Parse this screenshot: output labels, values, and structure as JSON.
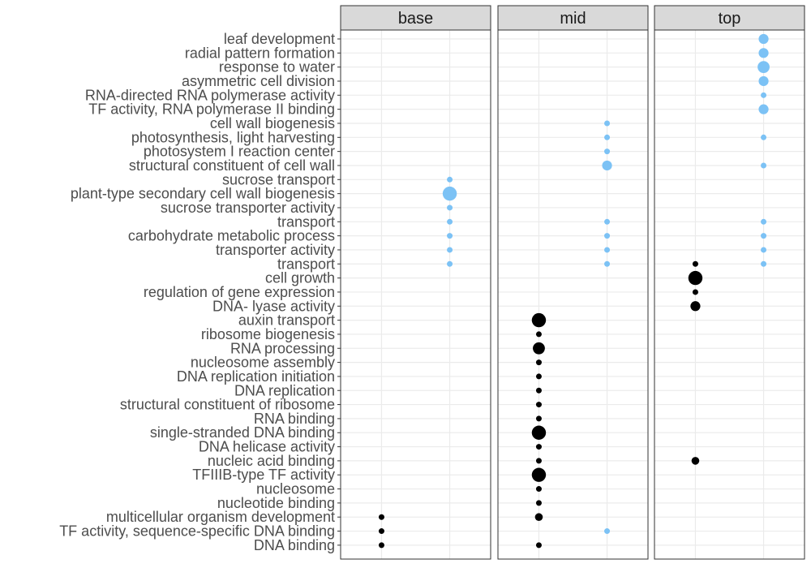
{
  "chart_data": {
    "type": "scatter",
    "facets": [
      "base",
      "mid",
      "top"
    ],
    "x_positions": [
      1,
      2
    ],
    "xlim": [
      0.4,
      2.6
    ],
    "x_tick_labels": [],
    "categories": [
      "leaf development",
      "radial pattern formation",
      "response to water",
      "asymmetric cell division",
      "RNA-directed RNA polymerase activity",
      "TF activity, RNA polymerase II  binding",
      "cell wall biogenesis",
      "photosynthesis, light harvesting",
      "photosystem I reaction center",
      "structural constituent of cell wall",
      "sucrose transport",
      "plant-type secondary cell wall biogenesis",
      "sucrose  transporter activity",
      "transport",
      "carbohydrate metabolic process",
      "transporter activity",
      "transport",
      "cell growth",
      "regulation of gene expression",
      "DNA- lyase activity",
      "auxin transport",
      "ribosome biogenesis",
      "RNA processing",
      "nucleosome assembly",
      "DNA replication initiation",
      "DNA replication",
      "structural constituent of ribosome",
      "RNA binding",
      "single-stranded DNA binding",
      "DNA helicase activity",
      "nucleic acid binding",
      "TFIIIB-type TF activity",
      "nucleosome",
      "nucleotide binding",
      "multicellular organism development",
      "TF activity, sequence-specific DNA binding",
      "DNA binding"
    ],
    "colors": {
      "black": "#000000",
      "blue": "#7cc2f5",
      "strip": "#d9d9d9",
      "grid": "#ebebeb",
      "border": "#333333"
    },
    "points": [
      {
        "facet": "base",
        "x": 2,
        "cat": 10,
        "size": 1,
        "color": "blue"
      },
      {
        "facet": "base",
        "x": 2,
        "cat": 11,
        "size": 3,
        "color": "blue"
      },
      {
        "facet": "base",
        "x": 2,
        "cat": 12,
        "size": 1,
        "color": "blue"
      },
      {
        "facet": "base",
        "x": 2,
        "cat": 13,
        "size": 1,
        "color": "blue"
      },
      {
        "facet": "base",
        "x": 2,
        "cat": 14,
        "size": 1,
        "color": "blue"
      },
      {
        "facet": "base",
        "x": 2,
        "cat": 15,
        "size": 1,
        "color": "blue"
      },
      {
        "facet": "base",
        "x": 2,
        "cat": 16,
        "size": 1,
        "color": "blue"
      },
      {
        "facet": "base",
        "x": 1,
        "cat": 34,
        "size": 1,
        "color": "black"
      },
      {
        "facet": "base",
        "x": 1,
        "cat": 35,
        "size": 1,
        "color": "black"
      },
      {
        "facet": "base",
        "x": 1,
        "cat": 36,
        "size": 1,
        "color": "black"
      },
      {
        "facet": "mid",
        "x": 2,
        "cat": 6,
        "size": 1,
        "color": "blue"
      },
      {
        "facet": "mid",
        "x": 2,
        "cat": 7,
        "size": 1,
        "color": "blue"
      },
      {
        "facet": "mid",
        "x": 2,
        "cat": 8,
        "size": 1,
        "color": "blue"
      },
      {
        "facet": "mid",
        "x": 2,
        "cat": 9,
        "size": 2,
        "color": "blue"
      },
      {
        "facet": "mid",
        "x": 2,
        "cat": 13,
        "size": 1,
        "color": "blue"
      },
      {
        "facet": "mid",
        "x": 2,
        "cat": 14,
        "size": 1,
        "color": "blue"
      },
      {
        "facet": "mid",
        "x": 2,
        "cat": 15,
        "size": 1,
        "color": "blue"
      },
      {
        "facet": "mid",
        "x": 2,
        "cat": 16,
        "size": 1,
        "color": "blue"
      },
      {
        "facet": "mid",
        "x": 2,
        "cat": 35,
        "size": 1,
        "color": "blue"
      },
      {
        "facet": "mid",
        "x": 1,
        "cat": 20,
        "size": 3,
        "color": "black"
      },
      {
        "facet": "mid",
        "x": 1,
        "cat": 21,
        "size": 1,
        "color": "black"
      },
      {
        "facet": "mid",
        "x": 1,
        "cat": 22,
        "size": 2.5,
        "color": "black"
      },
      {
        "facet": "mid",
        "x": 1,
        "cat": 23,
        "size": 1,
        "color": "black"
      },
      {
        "facet": "mid",
        "x": 1,
        "cat": 24,
        "size": 1,
        "color": "black"
      },
      {
        "facet": "mid",
        "x": 1,
        "cat": 25,
        "size": 1,
        "color": "black"
      },
      {
        "facet": "mid",
        "x": 1,
        "cat": 26,
        "size": 1,
        "color": "black"
      },
      {
        "facet": "mid",
        "x": 1,
        "cat": 27,
        "size": 1,
        "color": "black"
      },
      {
        "facet": "mid",
        "x": 1,
        "cat": 28,
        "size": 3,
        "color": "black"
      },
      {
        "facet": "mid",
        "x": 1,
        "cat": 29,
        "size": 1,
        "color": "black"
      },
      {
        "facet": "mid",
        "x": 1,
        "cat": 30,
        "size": 1,
        "color": "black"
      },
      {
        "facet": "mid",
        "x": 1,
        "cat": 31,
        "size": 3,
        "color": "black"
      },
      {
        "facet": "mid",
        "x": 1,
        "cat": 32,
        "size": 1,
        "color": "black"
      },
      {
        "facet": "mid",
        "x": 1,
        "cat": 33,
        "size": 1,
        "color": "black"
      },
      {
        "facet": "mid",
        "x": 1,
        "cat": 34,
        "size": 1.5,
        "color": "black"
      },
      {
        "facet": "mid",
        "x": 1,
        "cat": 36,
        "size": 1,
        "color": "black"
      },
      {
        "facet": "top",
        "x": 2,
        "cat": 0,
        "size": 2,
        "color": "blue"
      },
      {
        "facet": "top",
        "x": 2,
        "cat": 1,
        "size": 2,
        "color": "blue"
      },
      {
        "facet": "top",
        "x": 2,
        "cat": 2,
        "size": 2.5,
        "color": "blue"
      },
      {
        "facet": "top",
        "x": 2,
        "cat": 3,
        "size": 2,
        "color": "blue"
      },
      {
        "facet": "top",
        "x": 2,
        "cat": 4,
        "size": 1,
        "color": "blue"
      },
      {
        "facet": "top",
        "x": 2,
        "cat": 5,
        "size": 2,
        "color": "blue"
      },
      {
        "facet": "top",
        "x": 2,
        "cat": 7,
        "size": 1,
        "color": "blue"
      },
      {
        "facet": "top",
        "x": 2,
        "cat": 9,
        "size": 1,
        "color": "blue"
      },
      {
        "facet": "top",
        "x": 2,
        "cat": 13,
        "size": 1,
        "color": "blue"
      },
      {
        "facet": "top",
        "x": 2,
        "cat": 14,
        "size": 1,
        "color": "blue"
      },
      {
        "facet": "top",
        "x": 2,
        "cat": 15,
        "size": 1,
        "color": "blue"
      },
      {
        "facet": "top",
        "x": 2,
        "cat": 16,
        "size": 1,
        "color": "blue"
      },
      {
        "facet": "top",
        "x": 1,
        "cat": 16,
        "size": 1,
        "color": "black"
      },
      {
        "facet": "top",
        "x": 1,
        "cat": 17,
        "size": 3,
        "color": "black"
      },
      {
        "facet": "top",
        "x": 1,
        "cat": 18,
        "size": 1,
        "color": "black"
      },
      {
        "facet": "top",
        "x": 1,
        "cat": 19,
        "size": 2,
        "color": "black"
      },
      {
        "facet": "top",
        "x": 1,
        "cat": 30,
        "size": 1.5,
        "color": "black"
      }
    ],
    "grid": true,
    "legend": "none"
  }
}
